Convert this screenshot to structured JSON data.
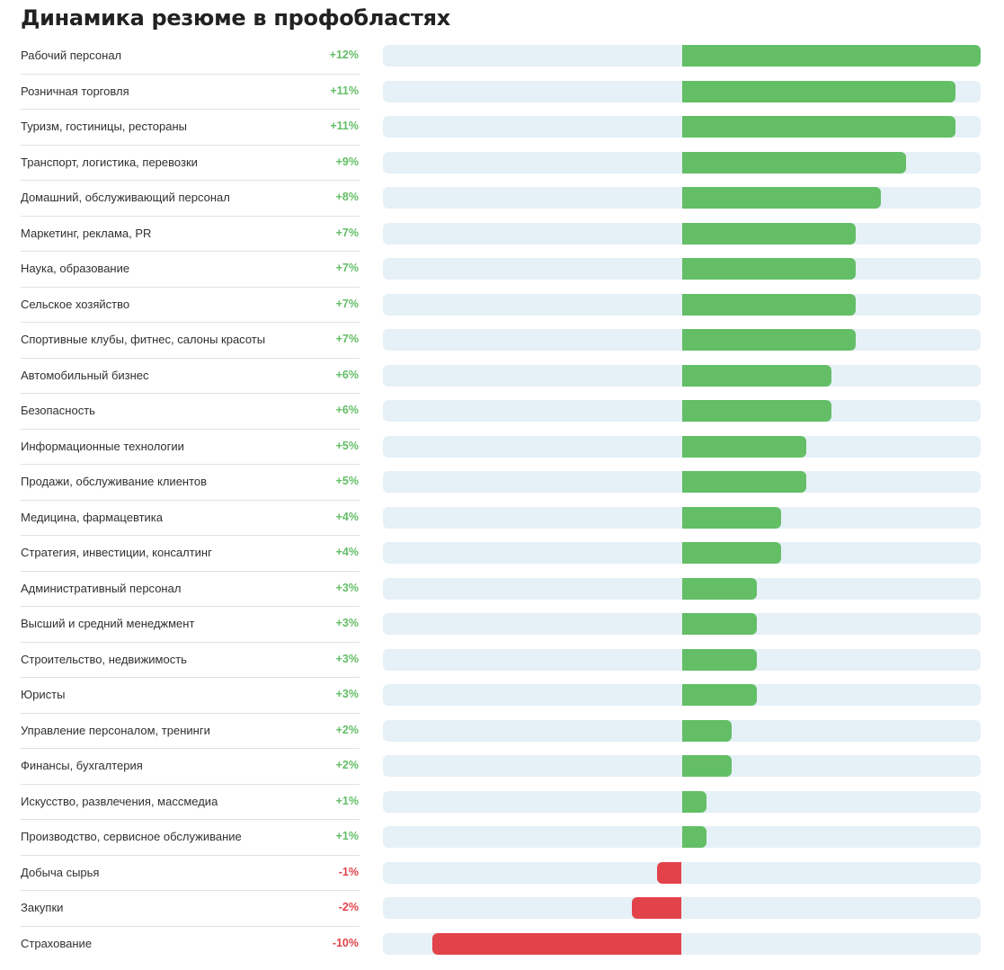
{
  "chart_data": {
    "type": "bar",
    "title": "Динамика резюме в профобластях",
    "orientation": "horizontal",
    "xlim": [
      -12,
      12
    ],
    "grid": false,
    "legend": "none",
    "colors": {
      "positive": "#63be66",
      "negative": "#e2434a",
      "track": "#e6f0f7"
    },
    "categories": [
      "Рабочий персонал",
      "Розничная торговля",
      "Туризм, гостиницы, рестораны",
      "Транспорт, логистика, перевозки",
      "Домашний, обслуживающий персонал",
      "Маркетинг, реклама, PR",
      "Наука, образование",
      "Сельское хозяйство",
      "Спортивные клубы, фитнес, салоны красоты",
      "Автомобильный бизнес",
      "Безопасность",
      "Информационные технологии",
      "Продажи, обслуживание клиентов",
      "Медицина, фармацевтика",
      "Стратегия, инвестиции, консалтинг",
      "Административный персонал",
      "Высший и средний менеджмент",
      "Строительство, недвижимость",
      "Юристы",
      "Управление персоналом, тренинги",
      "Финансы, бухгалтерия",
      "Искусство, развлечения, массмедиа",
      "Производство, сервисное обслуживание",
      "Добыча сырья",
      "Закупки",
      "Страхование"
    ],
    "values": [
      12,
      11,
      11,
      9,
      8,
      7,
      7,
      7,
      7,
      6,
      6,
      5,
      5,
      4,
      4,
      3,
      3,
      3,
      3,
      2,
      2,
      1,
      1,
      -1,
      -2,
      -10
    ],
    "labels": [
      "+12%",
      "+11%",
      "+11%",
      "+9%",
      "+8%",
      "+7%",
      "+7%",
      "+7%",
      "+7%",
      "+6%",
      "+6%",
      "+5%",
      "+5%",
      "+4%",
      "+4%",
      "+3%",
      "+3%",
      "+3%",
      "+3%",
      "+2%",
      "+2%",
      "+1%",
      "+1%",
      "-1%",
      "-2%",
      "-10%"
    ]
  }
}
